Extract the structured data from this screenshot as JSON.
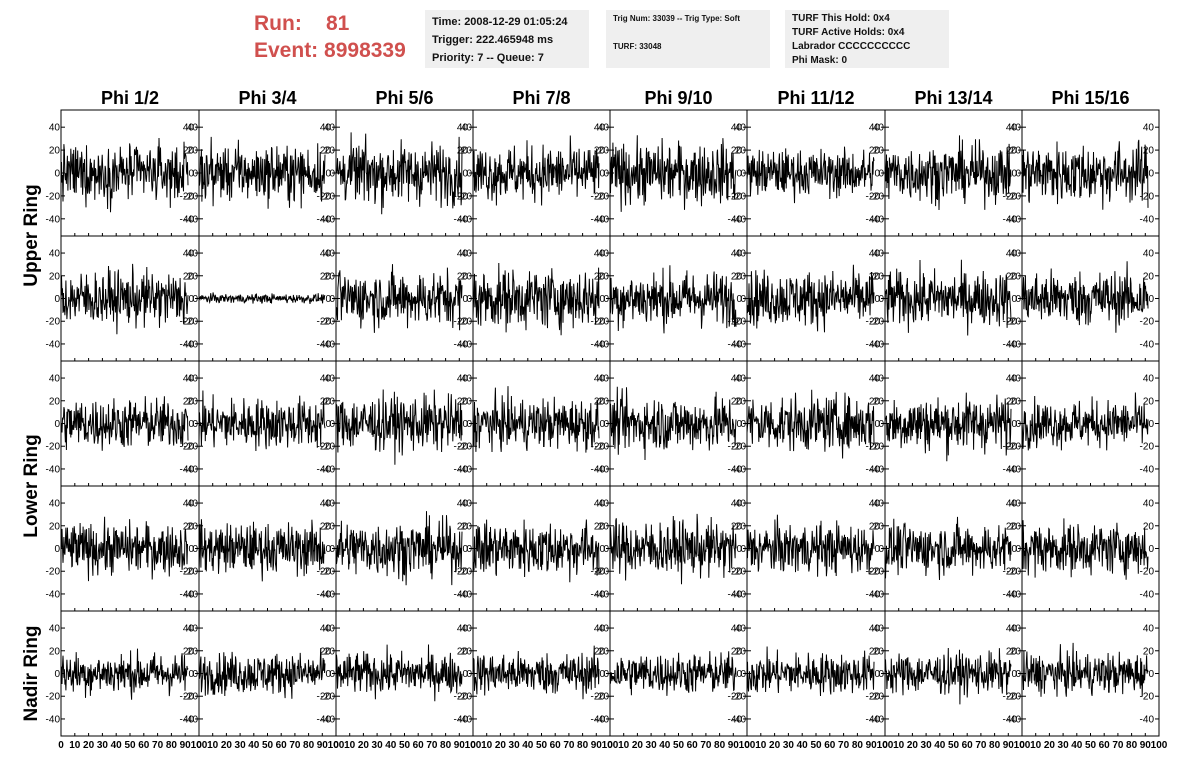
{
  "run_label": "Run:",
  "run_value": "81",
  "event_label": "Event:",
  "event_value": "8998339",
  "info_time": {
    "time": "Time: 2008-12-29 01:05:24",
    "trigger": "Trigger: 222.465948 ms",
    "priority": "Priority: 7 -- Queue: 7"
  },
  "info_trig": {
    "trig": "Trig Num: 33039 -- Trig Type: Soft",
    "turf": "TURF: 33048"
  },
  "info_turf": {
    "hold": "TURF This Hold: 0x4",
    "active": "TURF Active Holds: 0x4",
    "labrador": "Labrador CCCCCCCCCC",
    "phimask": "Phi Mask: 0"
  },
  "chart_data": {
    "type": "line",
    "columns": [
      "Phi 1/2",
      "Phi 3/4",
      "Phi 5/6",
      "Phi 7/8",
      "Phi 9/10",
      "Phi 11/12",
      "Phi 13/14",
      "Phi 15/16"
    ],
    "ring_labels": [
      {
        "label": "Upper Ring",
        "rows": [
          0,
          1
        ]
      },
      {
        "label": "Lower Ring",
        "rows": [
          2,
          3
        ]
      },
      {
        "label": "Nadir Ring",
        "rows": [
          4
        ]
      }
    ],
    "ylim": [
      -55,
      55
    ],
    "xlim": [
      0,
      100
    ],
    "yticks": [
      40,
      20,
      0,
      -20,
      -40
    ],
    "ytick_labels": [
      "40",
      "20",
      "0",
      "-20",
      "-40"
    ],
    "xticks": [
      0,
      10,
      20,
      30,
      40,
      50,
      60,
      70,
      80,
      90,
      100
    ],
    "xtick_labels": [
      "0",
      "10",
      "20",
      "30",
      "40",
      "50",
      "60",
      "70",
      "80",
      "90",
      "100"
    ],
    "x_extent": [
      0,
      92
    ],
    "n_samples": 260,
    "grid": false,
    "amplitudes": [
      [
        12,
        12,
        13,
        12,
        13,
        10,
        12,
        13
      ],
      [
        12,
        2,
        12,
        13,
        12,
        12,
        12,
        12
      ],
      [
        11,
        11,
        12,
        11,
        12,
        12,
        12,
        10
      ],
      [
        11,
        11,
        12,
        12,
        12,
        11,
        11,
        11
      ],
      [
        9,
        9,
        9,
        9,
        9,
        9,
        9,
        9
      ]
    ]
  }
}
